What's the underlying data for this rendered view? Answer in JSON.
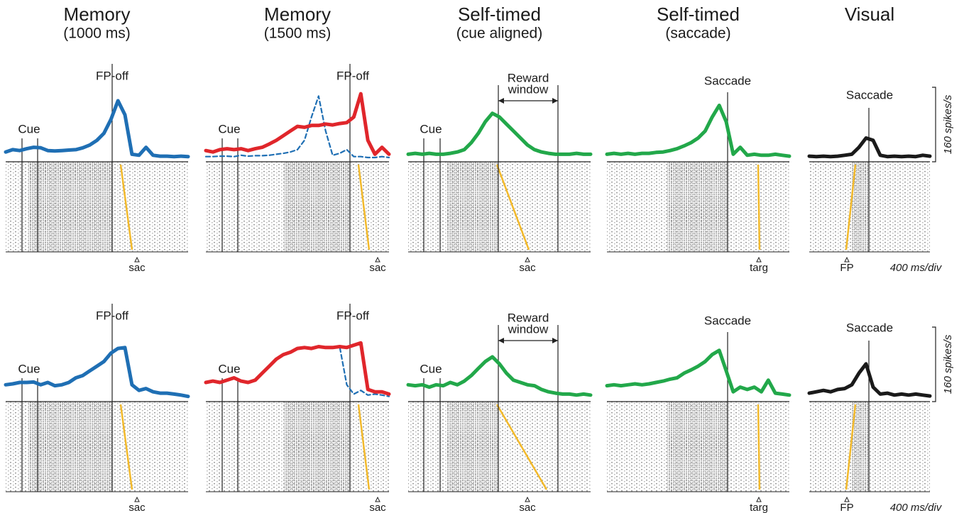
{
  "chart_data": [
    {
      "type": "line",
      "title": "Memory",
      "subtitle": "(1000 ms)",
      "event_labels": [
        "Cue",
        "FP-off"
      ],
      "marker_label": "sac",
      "series": [
        {
          "color": "#1f6fb4",
          "values": [
            15,
            20,
            18,
            22,
            25,
            24,
            18,
            17,
            18,
            19,
            20,
            24,
            30,
            40,
            55,
            85,
            125,
            95,
            10,
            8,
            25,
            8,
            6,
            6,
            5,
            6,
            5
          ]
        }
      ]
    },
    {
      "type": "line",
      "title": "Memory",
      "subtitle": "(1500 ms)",
      "event_labels": [
        "Cue",
        "FP-off"
      ],
      "marker_label": "sac",
      "series": [
        {
          "color": "#1f6fb4",
          "style": "dashed",
          "values": [
            5,
            5,
            6,
            6,
            5,
            8,
            6,
            7,
            7,
            8,
            10,
            12,
            15,
            20,
            40,
            90,
            135,
            60,
            8,
            12,
            20,
            5,
            5,
            3,
            3,
            5,
            3
          ]
        },
        {
          "color": "#e0262b",
          "values": [
            18,
            15,
            20,
            22,
            20,
            22,
            18,
            22,
            25,
            32,
            40,
            50,
            60,
            70,
            68,
            72,
            72,
            75,
            73,
            76,
            78,
            90,
            140,
            40,
            10,
            25,
            10
          ]
        }
      ]
    },
    {
      "type": "line",
      "title": "Self-timed",
      "subtitle": "(cue aligned)",
      "event_labels": [
        "Cue",
        "Reward",
        "window"
      ],
      "marker_label": "sac",
      "series": [
        {
          "color": "#22a84a",
          "values": [
            10,
            12,
            10,
            12,
            10,
            10,
            12,
            15,
            20,
            35,
            55,
            80,
            98,
            90,
            75,
            60,
            45,
            30,
            20,
            15,
            12,
            10,
            10,
            10,
            12,
            10,
            10
          ]
        }
      ]
    },
    {
      "type": "line",
      "title": "Self-timed",
      "subtitle": "(saccade)",
      "event_labels": [
        "Saccade"
      ],
      "marker_label": "targ",
      "series": [
        {
          "color": "#22a84a",
          "values": [
            10,
            12,
            10,
            12,
            10,
            12,
            12,
            14,
            15,
            18,
            22,
            28,
            35,
            45,
            60,
            90,
            115,
            80,
            10,
            25,
            8,
            10,
            8,
            8,
            10,
            8,
            6
          ]
        }
      ]
    },
    {
      "type": "line",
      "title": "Visual",
      "event_labels": [
        "Saccade"
      ],
      "marker_label": "FP",
      "time_scale": "400 ms/div",
      "scale_bar": {
        "value": 160,
        "label": "160 spikes/s"
      },
      "series": [
        {
          "color": "#1a1a1a",
          "values": [
            6,
            5,
            6,
            5,
            6,
            8,
            10,
            25,
            45,
            40,
            8,
            5,
            6,
            5,
            6,
            5,
            8,
            6
          ]
        }
      ]
    },
    {
      "type": "line",
      "event_labels": [
        "Cue",
        "FP-off"
      ],
      "marker_label": "sac",
      "series": [
        {
          "color": "#1f6fb4",
          "values": [
            30,
            32,
            35,
            35,
            36,
            30,
            35,
            28,
            30,
            35,
            45,
            50,
            60,
            70,
            80,
            98,
            108,
            110,
            30,
            18,
            22,
            15,
            12,
            12,
            10,
            8,
            5
          ]
        }
      ]
    },
    {
      "type": "line",
      "event_labels": [
        "Cue",
        "FP-off"
      ],
      "marker_label": "sac",
      "series": [
        {
          "color": "#1f6fb4",
          "style": "dashed",
          "values": [
            35,
            38,
            35,
            40,
            45,
            38,
            35,
            40,
            55,
            70,
            85,
            95,
            100,
            108,
            110,
            108,
            112,
            110,
            110,
            112,
            30,
            10,
            18,
            8,
            10,
            8,
            5
          ]
        },
        {
          "color": "#e0262b",
          "values": [
            35,
            38,
            35,
            40,
            45,
            38,
            35,
            40,
            55,
            70,
            85,
            95,
            100,
            108,
            110,
            108,
            112,
            110,
            110,
            112,
            110,
            115,
            120,
            20,
            15,
            15,
            10
          ]
        }
      ]
    },
    {
      "type": "line",
      "event_labels": [
        "Cue",
        "Reward",
        "window"
      ],
      "marker_label": "sac",
      "series": [
        {
          "color": "#22a84a",
          "values": [
            30,
            28,
            30,
            25,
            30,
            28,
            35,
            30,
            38,
            50,
            65,
            80,
            90,
            75,
            55,
            40,
            35,
            30,
            28,
            20,
            15,
            12,
            10,
            10,
            8,
            10,
            8
          ]
        }
      ]
    },
    {
      "type": "line",
      "event_labels": [
        "Saccade"
      ],
      "marker_label": "targ",
      "series": [
        {
          "color": "#22a84a",
          "values": [
            28,
            30,
            28,
            30,
            32,
            30,
            32,
            35,
            38,
            42,
            45,
            55,
            62,
            70,
            80,
            95,
            104,
            60,
            15,
            25,
            20,
            25,
            15,
            40,
            12,
            10,
            8
          ]
        }
      ]
    },
    {
      "type": "line",
      "event_labels": [
        "Saccade"
      ],
      "marker_label": "FP",
      "time_scale": "400 ms/div",
      "scale_bar": {
        "value": 160,
        "label": "160 spikes/s"
      },
      "series": [
        {
          "color": "#1a1a1a",
          "values": [
            12,
            15,
            18,
            15,
            20,
            22,
            30,
            55,
            75,
            25,
            10,
            12,
            8,
            10,
            8,
            10,
            8,
            6
          ]
        }
      ]
    }
  ]
}
